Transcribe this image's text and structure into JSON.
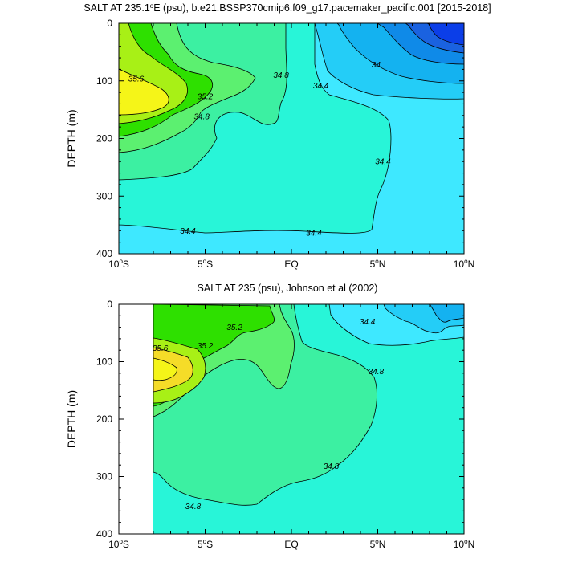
{
  "chart_data": [
    {
      "type": "heatmap",
      "title": "SALT AT 235.1°E (psu), b.e21.BSSP370cmip6.f09_g17.pacemaker_pacific.001 [2015-2018]",
      "title_pre": "SALT AT 235.1",
      "title_sup": "o",
      "title_post": "E (psu), b.e21.BSSP370cmip6.f09_g17.pacemaker_pacific.001 [2015-2018]",
      "xlabel": "",
      "ylabel": "DEPTH (m)",
      "xlim": [
        -10,
        10
      ],
      "ylim": [
        400,
        0
      ],
      "x_ticks": [
        {
          "value": -10,
          "pre": "10",
          "sup": "o",
          "post": "S"
        },
        {
          "value": -5,
          "pre": "5",
          "sup": "o",
          "post": "S"
        },
        {
          "value": 0,
          "pre": "EQ",
          "sup": "",
          "post": ""
        },
        {
          "value": 5,
          "pre": "5",
          "sup": "o",
          "post": "N"
        },
        {
          "value": 10,
          "pre": "10",
          "sup": "o",
          "post": "N"
        }
      ],
      "y_ticks": [
        "0",
        "100",
        "200",
        "300",
        "400"
      ],
      "contour_labels": [
        {
          "text": "35.6",
          "x": -9.0,
          "y": 96
        },
        {
          "text": "35.2",
          "x": -5.0,
          "y": 127
        },
        {
          "text": "34.8",
          "x": -5.2,
          "y": 162
        },
        {
          "text": "34.8",
          "x": -0.6,
          "y": 90
        },
        {
          "text": "34.4",
          "x": 1.7,
          "y": 108
        },
        {
          "text": "34",
          "x": 4.9,
          "y": 72
        },
        {
          "text": "34.4",
          "x": 5.3,
          "y": 240
        },
        {
          "text": "34.4",
          "x": -6.0,
          "y": 360
        },
        {
          "text": "34.4",
          "x": 1.3,
          "y": 364
        }
      ]
    },
    {
      "type": "heatmap",
      "title": "SALT AT 235 (psu), Johnson et al (2002)",
      "xlabel": "",
      "ylabel": "DEPTH (m)",
      "xlim": [
        -10,
        10
      ],
      "ylim": [
        400,
        0
      ],
      "data_xlim": [
        -8,
        10
      ],
      "x_ticks": [
        {
          "value": -10,
          "pre": "10",
          "sup": "o",
          "post": "S"
        },
        {
          "value": -5,
          "pre": "5",
          "sup": "o",
          "post": "S"
        },
        {
          "value": 0,
          "pre": "EQ",
          "sup": "",
          "post": ""
        },
        {
          "value": 5,
          "pre": "5",
          "sup": "o",
          "post": "N"
        },
        {
          "value": 10,
          "pre": "10",
          "sup": "o",
          "post": "N"
        }
      ],
      "y_ticks": [
        "0",
        "100",
        "200",
        "300",
        "400"
      ],
      "contour_labels": [
        {
          "text": "35.6",
          "x": -7.6,
          "y": 76
        },
        {
          "text": "35.2",
          "x": -5.0,
          "y": 72
        },
        {
          "text": "35.2",
          "x": -3.3,
          "y": 40
        },
        {
          "text": "34.4",
          "x": 4.4,
          "y": 30
        },
        {
          "text": "34.8",
          "x": 4.9,
          "y": 117
        },
        {
          "text": "34.8",
          "x": 2.3,
          "y": 282
        },
        {
          "text": "34.8",
          "x": -5.7,
          "y": 352
        }
      ]
    }
  ],
  "colors": {
    "s36_0": "#f5f518",
    "s35_6": "#a8f016",
    "s35_4": "#2ee000",
    "s35_2": "#5cf070",
    "s35_0": "#3cf0a2",
    "s34_8": "#28f5d8",
    "s34_4": "#3ee8ff",
    "s34_2": "#24cdf7",
    "s34_0": "#14b2f0",
    "s33_8": "#0f8ae8",
    "s33_6": "#1a62e0",
    "s33_4": "#0b3ee8",
    "s35_8": "#f5dc28"
  }
}
